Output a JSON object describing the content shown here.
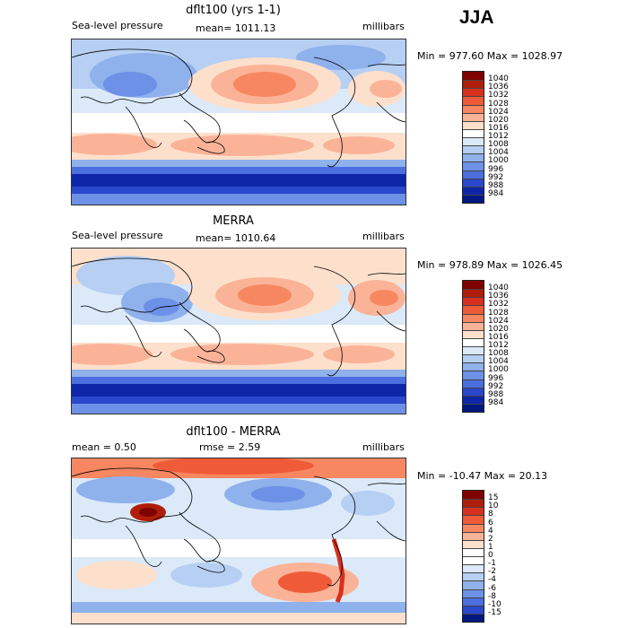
{
  "season": "JJA",
  "panels": [
    {
      "title": "dflt100 (yrs 1-1)",
      "left_label": "Sea-level pressure",
      "center_label": "mean= 1011.13",
      "right_label": "millibars",
      "stats": "Min = 977.60 Max = 1028.97",
      "colorbar_labels": [
        "1040",
        "1036",
        "1032",
        "1028",
        "1024",
        "1020",
        "1016",
        "1012",
        "1008",
        "1004",
        "1000",
        "996",
        "992",
        "988",
        "984"
      ],
      "colorbar_colors": [
        "#7f0000",
        "#b01d08",
        "#d7301f",
        "#ef5a38",
        "#f78761",
        "#fbb398",
        "#fde0cc",
        "#ffffff",
        "#dbe9f9",
        "#b6cff3",
        "#8fb1ec",
        "#6c91e6",
        "#4b6fdf",
        "#2a48cc",
        "#0d26a8",
        "#001780"
      ]
    },
    {
      "title": "MERRA",
      "left_label": "Sea-level pressure",
      "center_label": "mean= 1010.64",
      "right_label": "millibars",
      "stats": "Min = 978.89 Max = 1026.45",
      "colorbar_labels": [
        "1040",
        "1036",
        "1032",
        "1028",
        "1024",
        "1020",
        "1016",
        "1012",
        "1008",
        "1004",
        "1000",
        "996",
        "992",
        "988",
        "984"
      ],
      "colorbar_colors": [
        "#7f0000",
        "#b01d08",
        "#d7301f",
        "#ef5a38",
        "#f78761",
        "#fbb398",
        "#fde0cc",
        "#ffffff",
        "#dbe9f9",
        "#b6cff3",
        "#8fb1ec",
        "#6c91e6",
        "#4b6fdf",
        "#2a48cc",
        "#0d26a8",
        "#001780"
      ]
    },
    {
      "title": "dflt100 - MERRA",
      "left_label": "mean =    0.50",
      "center_label": "rmse =    2.59",
      "right_label": "millibars",
      "stats": "Min = -10.47 Max =  20.13",
      "colorbar_labels": [
        "15",
        "10",
        "8",
        "6",
        "4",
        "2",
        "1",
        "0",
        "-1",
        "-2",
        "-4",
        "-6",
        "-8",
        "-10",
        "-15"
      ],
      "colorbar_colors": [
        "#7f0000",
        "#b01d08",
        "#d7301f",
        "#ef5a38",
        "#f78761",
        "#fbb398",
        "#fde0cc",
        "#ffffff",
        "#ffffff",
        "#dbe9f9",
        "#b6cff3",
        "#8fb1ec",
        "#6c91e6",
        "#4b6fdf",
        "#2a48cc",
        "#001780"
      ]
    }
  ],
  "chart_data": [
    {
      "type": "heatmap",
      "title": "dflt100 (yrs 1-1)",
      "variable": "Sea-level pressure",
      "units": "millibars",
      "mean": 1011.13,
      "min": 977.6,
      "max": 1028.97,
      "levels": [
        984,
        988,
        992,
        996,
        1000,
        1004,
        1008,
        1012,
        1016,
        1020,
        1024,
        1028,
        1032,
        1036,
        1040
      ]
    },
    {
      "type": "heatmap",
      "title": "MERRA",
      "variable": "Sea-level pressure",
      "units": "millibars",
      "mean": 1010.64,
      "min": 978.89,
      "max": 1026.45,
      "levels": [
        984,
        988,
        992,
        996,
        1000,
        1004,
        1008,
        1012,
        1016,
        1020,
        1024,
        1028,
        1032,
        1036,
        1040
      ]
    },
    {
      "type": "heatmap",
      "title": "dflt100 - MERRA",
      "units": "millibars",
      "mean": 0.5,
      "rmse": 2.59,
      "min": -10.47,
      "max": 20.13,
      "levels": [
        -15,
        -10,
        -8,
        -6,
        -4,
        -2,
        -1,
        0,
        1,
        2,
        4,
        6,
        8,
        10,
        15
      ]
    }
  ]
}
